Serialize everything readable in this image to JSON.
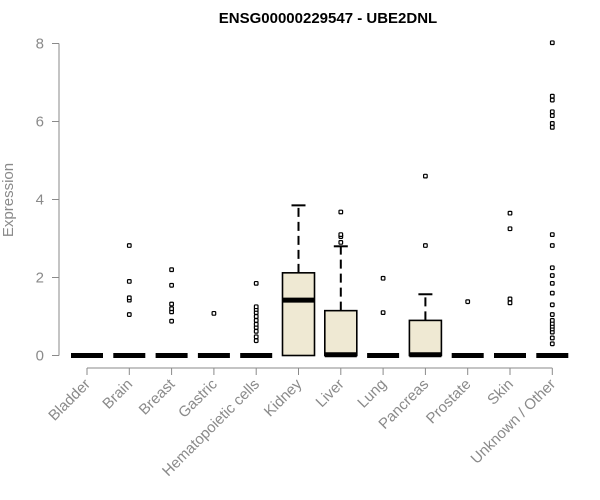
{
  "chart_data": {
    "type": "boxplot",
    "title": "ENSG00000229547 - UBE2DNL",
    "ylabel": "Expression",
    "xlabel": "",
    "ylim": [
      0,
      8.3
    ],
    "yticks": [
      0,
      2,
      4,
      6,
      8
    ],
    "colors": {
      "box_fill": "#efe9d3",
      "stroke": "#000000",
      "axis": "#8a8a8a"
    },
    "categories": [
      {
        "name": "Bladder",
        "q1": 0,
        "median": 0,
        "q3": 0,
        "whisker_low": 0,
        "whisker_high": 0,
        "outliers": []
      },
      {
        "name": "Brain",
        "q1": 0,
        "median": 0,
        "q3": 0,
        "whisker_low": 0,
        "whisker_high": 0,
        "outliers": [
          1.05,
          1.42,
          1.48,
          1.9,
          2.82
        ]
      },
      {
        "name": "Breast",
        "q1": 0,
        "median": 0,
        "q3": 0,
        "whisker_low": 0,
        "whisker_high": 0,
        "outliers": [
          0.88,
          1.12,
          1.2,
          1.32,
          1.8,
          2.2
        ]
      },
      {
        "name": "Gastric",
        "q1": 0,
        "median": 0,
        "q3": 0,
        "whisker_low": 0,
        "whisker_high": 0,
        "outliers": [
          1.08
        ]
      },
      {
        "name": "Hematopoietic cells",
        "q1": 0,
        "median": 0,
        "q3": 0,
        "whisker_low": 0,
        "whisker_high": 0,
        "outliers": [
          0.38,
          0.48,
          0.62,
          0.72,
          0.8,
          0.9,
          1.0,
          1.1,
          1.18,
          1.25,
          1.85
        ]
      },
      {
        "name": "Kidney",
        "q1": 0,
        "median": 1.42,
        "q3": 2.12,
        "whisker_low": 0,
        "whisker_high": 3.85,
        "outliers": []
      },
      {
        "name": "Liver",
        "q1": 0,
        "median": 0.02,
        "q3": 1.15,
        "whisker_low": 0,
        "whisker_high": 2.8,
        "outliers": [
          2.9,
          3.05,
          3.1,
          3.68
        ]
      },
      {
        "name": "Lung",
        "q1": 0,
        "median": 0,
        "q3": 0,
        "whisker_low": 0,
        "whisker_high": 0,
        "outliers": [
          1.1,
          1.98
        ]
      },
      {
        "name": "Pancreas",
        "q1": 0,
        "median": 0.02,
        "q3": 0.9,
        "whisker_low": 0,
        "whisker_high": 1.57,
        "outliers": [
          2.82,
          4.6
        ]
      },
      {
        "name": "Prostate",
        "q1": 0,
        "median": 0,
        "q3": 0,
        "whisker_low": 0,
        "whisker_high": 0,
        "outliers": [
          1.38
        ]
      },
      {
        "name": "Skin",
        "q1": 0,
        "median": 0,
        "q3": 0,
        "whisker_low": 0,
        "whisker_high": 0,
        "outliers": [
          1.35,
          1.45,
          3.25,
          3.65
        ]
      },
      {
        "name": "Unknown / Other",
        "q1": 0,
        "median": 0,
        "q3": 0,
        "whisker_low": 0,
        "whisker_high": 0,
        "outliers": [
          0.3,
          0.45,
          0.6,
          0.68,
          0.75,
          0.82,
          0.9,
          1.05,
          1.3,
          1.6,
          1.85,
          2.05,
          2.25,
          2.82,
          3.1,
          5.85,
          5.95,
          6.15,
          6.25,
          6.55,
          6.65,
          8.02
        ]
      }
    ]
  }
}
